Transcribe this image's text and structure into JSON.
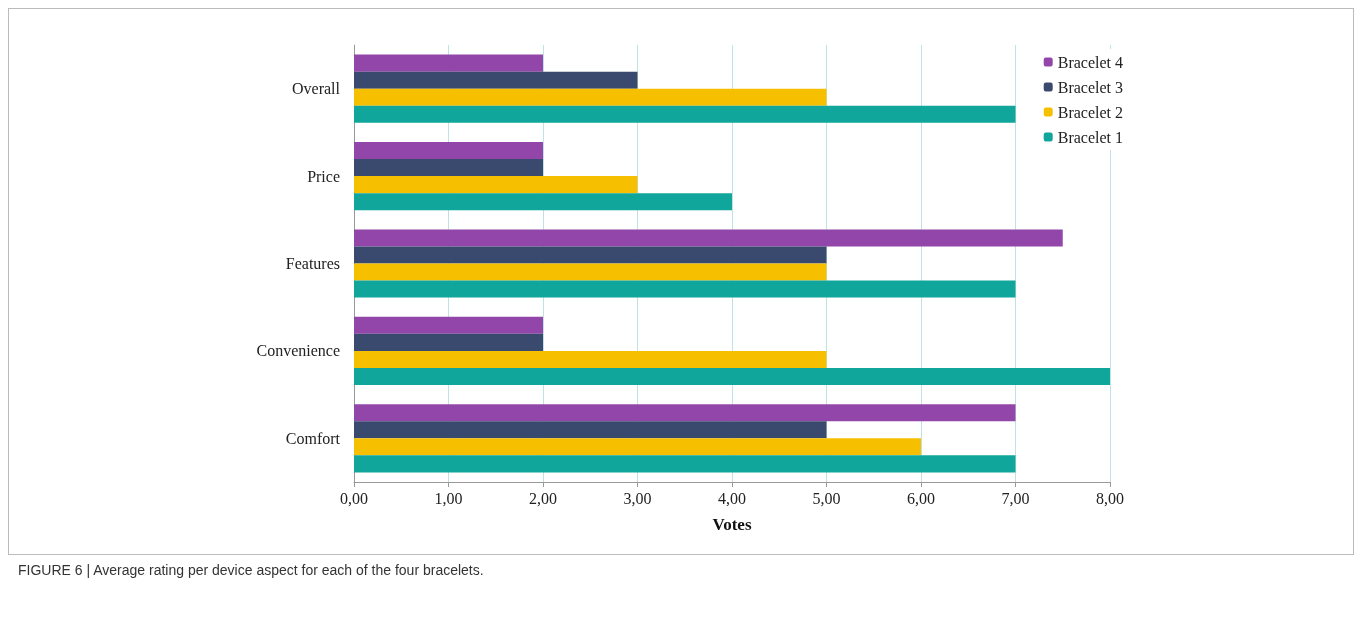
{
  "chart_data": {
    "type": "bar",
    "orientation": "horizontal",
    "xlabel": "Votes",
    "categories": [
      "Overall",
      "Price",
      "Features",
      "Convenience",
      "Comfort"
    ],
    "series": [
      {
        "name": "Bracelet 4",
        "color": "#9346a9",
        "values": [
          2,
          2,
          7.5,
          2,
          7
        ]
      },
      {
        "name": "Bracelet 3",
        "color": "#3a4a6e",
        "values": [
          3,
          2,
          5,
          2,
          5
        ]
      },
      {
        "name": "Bracelet 2",
        "color": "#f6c000",
        "values": [
          5,
          3,
          5,
          5,
          6
        ]
      },
      {
        "name": "Bracelet 1",
        "color": "#10a69c",
        "values": [
          7,
          4,
          7,
          8,
          7
        ]
      }
    ],
    "xlim": [
      0,
      8
    ],
    "xticks": [
      {
        "value": 0,
        "label": "0,00"
      },
      {
        "value": 1,
        "label": "1,00"
      },
      {
        "value": 2,
        "label": "2,00"
      },
      {
        "value": 3,
        "label": "3,00"
      },
      {
        "value": 4,
        "label": "4,00"
      },
      {
        "value": 5,
        "label": "5,00"
      },
      {
        "value": 6,
        "label": "6,00"
      },
      {
        "value": 7,
        "label": "7,00"
      },
      {
        "value": 8,
        "label": "8,00"
      }
    ],
    "grid": "x",
    "legend": "top right",
    "annotations": [
      "FIGURE 6 | Average rating per device aspect for each of the four bracelets."
    ]
  }
}
